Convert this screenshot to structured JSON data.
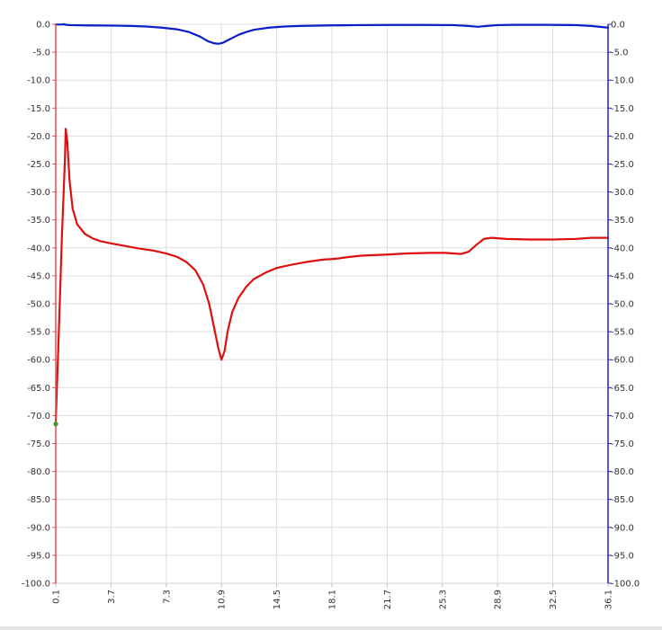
{
  "chart_data": {
    "type": "line",
    "title": "",
    "xlabel": "",
    "ylabel_left": "",
    "ylabel_right": "",
    "xlim": [
      0.1,
      36.1
    ],
    "ylim": [
      -100,
      0
    ],
    "x_ticks": [
      "0.1",
      "3.7",
      "7.3",
      "10.9",
      "14.5",
      "18.1",
      "21.7",
      "25.3",
      "28.9",
      "32.5",
      "36.1"
    ],
    "y_ticks_left": [
      "0.0",
      "-5.0",
      "-10.0",
      "-15.0",
      "-20.0",
      "-25.0",
      "-30.0",
      "-35.0",
      "-40.0",
      "-45.0",
      "-50.0",
      "-55.0",
      "-60.0",
      "-65.0",
      "-70.0",
      "-75.0",
      "-80.0",
      "-85.0",
      "-90.0",
      "-95.0",
      "-100.0"
    ],
    "y_ticks_right": [
      "0.0",
      "-5.0",
      "-10.0",
      "-15.0",
      "-20.0",
      "-25.0",
      "-30.0",
      "-35.0",
      "-40.0",
      "-45.0",
      "-50.0",
      "-55.0",
      "-60.0",
      "-65.0",
      "-70.0",
      "-75.0",
      "-80.0",
      "-85.0",
      "-90.0",
      "-95.0",
      "-100.0"
    ],
    "grid": true,
    "legend": "none",
    "left_axis_color": "#e05050",
    "right_axis_color": "#2020d0",
    "marker": {
      "x": 0.1,
      "y": -71.5,
      "color": "#3a9a2a"
    },
    "series": [
      {
        "color": "#0a1ec8",
        "axis": "right",
        "points": [
          [
            0.1,
            -0.05
          ],
          [
            0.4,
            -0.05
          ],
          [
            0.65,
            0.0
          ],
          [
            0.8,
            -0.1
          ],
          [
            1.0,
            -0.15
          ],
          [
            2.0,
            -0.2
          ],
          [
            3.0,
            -0.22
          ],
          [
            4.0,
            -0.25
          ],
          [
            5.0,
            -0.3
          ],
          [
            6.0,
            -0.4
          ],
          [
            7.0,
            -0.6
          ],
          [
            8.0,
            -0.9
          ],
          [
            8.8,
            -1.4
          ],
          [
            9.5,
            -2.2
          ],
          [
            10.0,
            -3.0
          ],
          [
            10.4,
            -3.4
          ],
          [
            10.7,
            -3.5
          ],
          [
            11.0,
            -3.3
          ],
          [
            11.5,
            -2.6
          ],
          [
            12.0,
            -1.9
          ],
          [
            12.5,
            -1.4
          ],
          [
            13.0,
            -1.0
          ],
          [
            14.0,
            -0.6
          ],
          [
            15.0,
            -0.4
          ],
          [
            16.0,
            -0.3
          ],
          [
            18.0,
            -0.2
          ],
          [
            20.0,
            -0.15
          ],
          [
            22.0,
            -0.12
          ],
          [
            24.0,
            -0.12
          ],
          [
            26.0,
            -0.15
          ],
          [
            27.0,
            -0.3
          ],
          [
            27.6,
            -0.45
          ],
          [
            28.2,
            -0.3
          ],
          [
            28.9,
            -0.15
          ],
          [
            30.0,
            -0.1
          ],
          [
            32.0,
            -0.1
          ],
          [
            34.0,
            -0.15
          ],
          [
            35.0,
            -0.3
          ],
          [
            36.1,
            -0.6
          ]
        ]
      },
      {
        "color": "#dd1010",
        "axis": "left",
        "points": [
          [
            0.1,
            -71.0
          ],
          [
            0.3,
            -55.0
          ],
          [
            0.5,
            -38.0
          ],
          [
            0.7,
            -24.0
          ],
          [
            0.75,
            -18.7
          ],
          [
            0.85,
            -21.0
          ],
          [
            1.0,
            -28.0
          ],
          [
            1.2,
            -33.0
          ],
          [
            1.5,
            -35.8
          ],
          [
            2.0,
            -37.5
          ],
          [
            2.5,
            -38.3
          ],
          [
            3.0,
            -38.8
          ],
          [
            3.7,
            -39.2
          ],
          [
            4.5,
            -39.6
          ],
          [
            5.5,
            -40.1
          ],
          [
            6.5,
            -40.5
          ],
          [
            7.3,
            -41.0
          ],
          [
            8.0,
            -41.6
          ],
          [
            8.6,
            -42.5
          ],
          [
            9.2,
            -44.0
          ],
          [
            9.7,
            -46.5
          ],
          [
            10.1,
            -50.0
          ],
          [
            10.4,
            -54.0
          ],
          [
            10.7,
            -58.0
          ],
          [
            10.9,
            -60.0
          ],
          [
            11.1,
            -58.5
          ],
          [
            11.3,
            -55.0
          ],
          [
            11.6,
            -51.5
          ],
          [
            12.0,
            -49.0
          ],
          [
            12.5,
            -47.0
          ],
          [
            13.0,
            -45.6
          ],
          [
            13.8,
            -44.4
          ],
          [
            14.5,
            -43.6
          ],
          [
            15.5,
            -43.0
          ],
          [
            16.5,
            -42.5
          ],
          [
            17.5,
            -42.1
          ],
          [
            18.1,
            -42.0
          ],
          [
            18.5,
            -41.9
          ],
          [
            19.0,
            -41.7
          ],
          [
            20.0,
            -41.4
          ],
          [
            21.7,
            -41.2
          ],
          [
            23.0,
            -41.0
          ],
          [
            24.5,
            -40.9
          ],
          [
            25.5,
            -40.9
          ],
          [
            26.5,
            -41.1
          ],
          [
            27.0,
            -40.7
          ],
          [
            27.5,
            -39.5
          ],
          [
            28.0,
            -38.4
          ],
          [
            28.5,
            -38.2
          ],
          [
            29.5,
            -38.4
          ],
          [
            31.0,
            -38.5
          ],
          [
            32.5,
            -38.5
          ],
          [
            34.0,
            -38.4
          ],
          [
            35.0,
            -38.2
          ],
          [
            36.1,
            -38.2
          ]
        ]
      }
    ]
  }
}
